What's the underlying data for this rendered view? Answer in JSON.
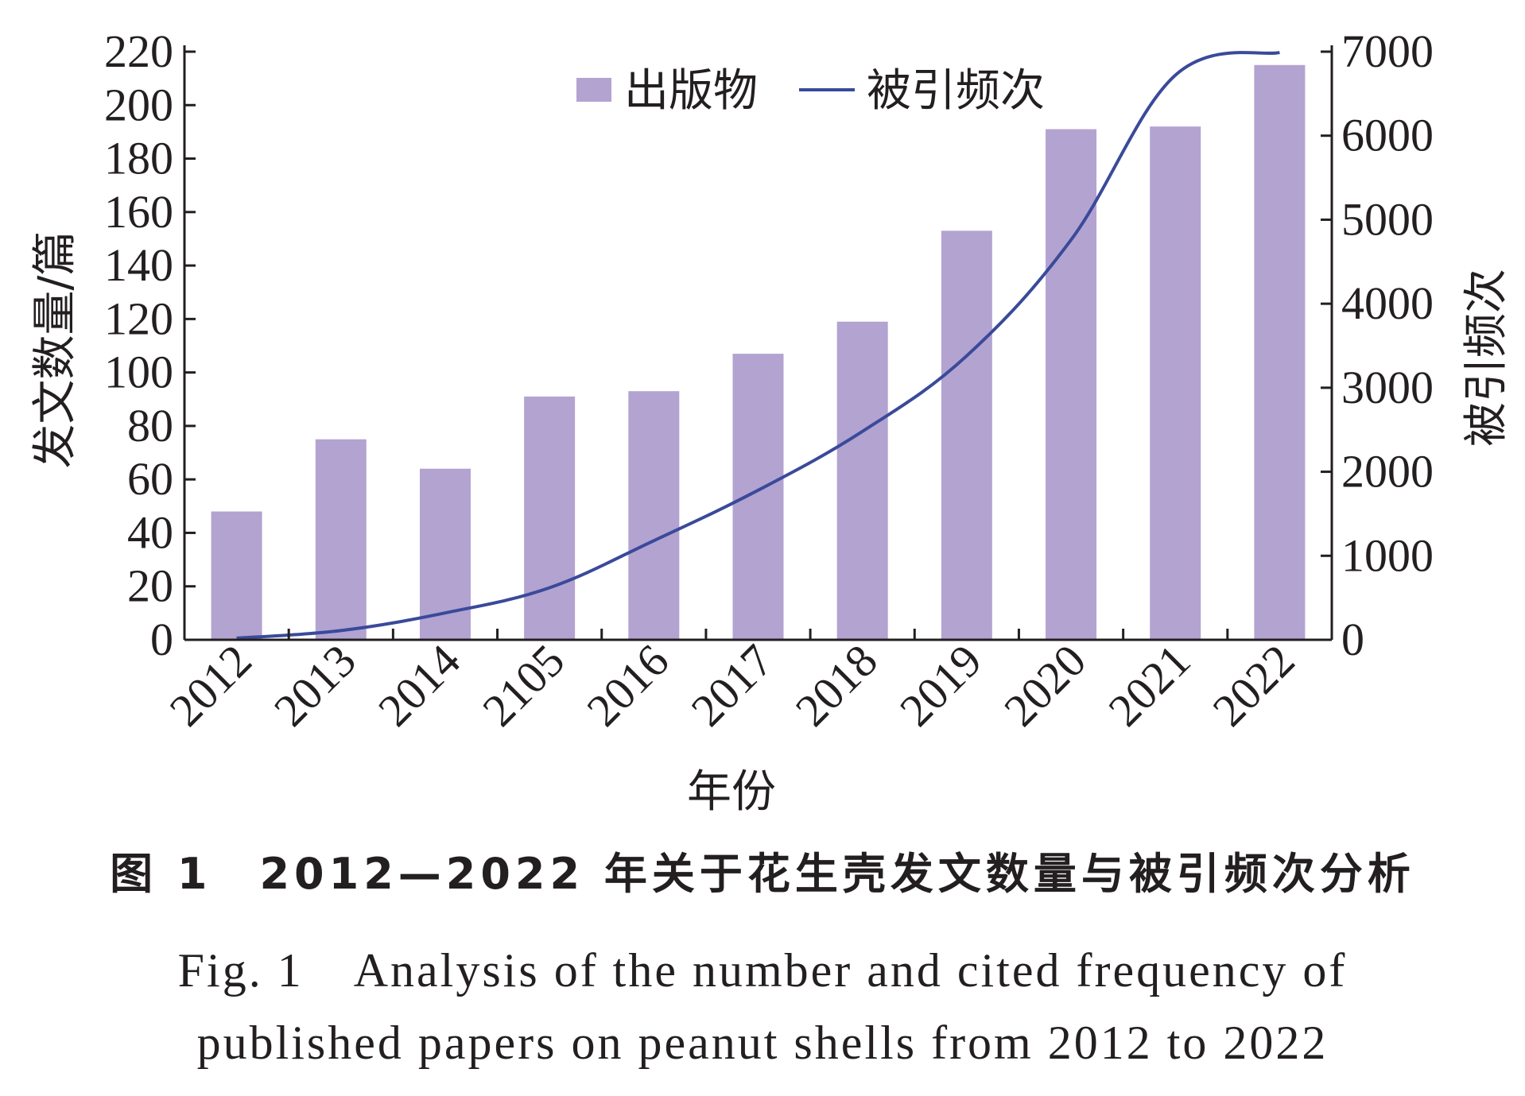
{
  "chart_data": {
    "type": "bar+line",
    "categories": [
      "2012",
      "2013",
      "2014",
      "2105",
      "2016",
      "2017",
      "2018",
      "2019",
      "2020",
      "2021",
      "2022"
    ],
    "series": [
      {
        "name": "出版物",
        "type": "bar",
        "axis": "left",
        "color": "#b3a3d1",
        "values": [
          48,
          75,
          64,
          91,
          93,
          107,
          119,
          153,
          191,
          192,
          215
        ]
      },
      {
        "name": "被引频次",
        "type": "line",
        "axis": "right",
        "color": "#3a4a9a",
        "values": [
          20,
          110,
          320,
          620,
          1180,
          1780,
          2480,
          3380,
          4760,
          6720,
          6990
        ]
      }
    ],
    "xlabel": "年份",
    "ylabel": "发文数量/篇",
    "y2label": "被引频次",
    "ylim": [
      0,
      220
    ],
    "y2lim": [
      0,
      7000
    ],
    "yticks": [
      "0",
      "20",
      "40",
      "60",
      "80",
      "100",
      "120",
      "140",
      "160",
      "180",
      "200",
      "220"
    ],
    "y2ticks": [
      "0",
      "1000",
      "2000",
      "3000",
      "4000",
      "5000",
      "6000",
      "7000"
    ],
    "legend_position": "top-center",
    "grid": false
  },
  "caption": {
    "cn": "图 1　2012—2022 年关于花生壳发文数量与被引频次分析",
    "en_line1": "Fig. 1　Analysis of the number and cited frequency of",
    "en_line2": "published papers on peanut shells from 2012 to 2022"
  }
}
